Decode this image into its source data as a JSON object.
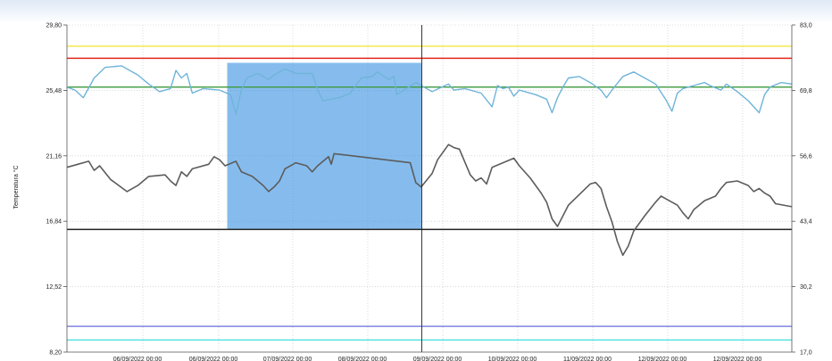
{
  "chart_data": {
    "type": "line",
    "ylabel": "Temperatura °C",
    "y_left": {
      "min": 8.2,
      "max": 29.8,
      "ticks": [
        "29,80",
        "25,48",
        "21,16",
        "16,84",
        "12,52",
        "8,20"
      ]
    },
    "y_right": {
      "min": 17.0,
      "max": 83.0,
      "ticks": [
        "83,0",
        "69,8",
        "56,6",
        "43,4",
        "30,2",
        "17,0"
      ]
    },
    "x": {
      "min": "2022-09-05 12:00",
      "max": "2022-09-13 10:00",
      "ticks": [
        "06/09/2022 00:00",
        "06/09/2022 00:00",
        "07/09/2022 00:00",
        "08/09/2022 00:00",
        "09/09/2022 00:00",
        "10/09/2022 00:00",
        "11/09/2022 00:00",
        "12/09/2022 00:00",
        "12/09/2022 00:00"
      ]
    },
    "reference_lines": [
      {
        "value": 28.4,
        "color": "#f2e640"
      },
      {
        "value": 27.6,
        "color": "#e0251b"
      },
      {
        "value": 25.7,
        "color": "#3c9a3c"
      },
      {
        "value": 16.3,
        "color": "#222222"
      },
      {
        "value": 9.9,
        "color": "#7f86e0"
      },
      {
        "value": 9.0,
        "color": "#49e0e0"
      }
    ],
    "cursor_x": "2022-09-09 09:00",
    "selection": {
      "x_start": "2022-09-07 06:00",
      "x_end": "2022-09-09 09:00",
      "y_start": 16.3,
      "y_end": 27.3
    },
    "series": [
      {
        "color": "#6fb4d8",
        "points": [
          [
            0,
            25.7
          ],
          [
            1.5,
            25.5
          ],
          [
            3,
            25.0
          ],
          [
            5,
            26.3
          ],
          [
            7,
            27.0
          ],
          [
            10,
            27.1
          ],
          [
            13,
            26.5
          ],
          [
            15,
            25.9
          ],
          [
            17,
            25.4
          ],
          [
            19,
            25.6
          ],
          [
            20,
            26.8
          ],
          [
            21,
            26.3
          ],
          [
            22,
            26.6
          ],
          [
            23,
            25.3
          ],
          [
            25,
            25.6
          ],
          [
            28,
            25.5
          ],
          [
            30,
            25.2
          ],
          [
            31,
            23.9
          ],
          [
            32,
            25.5
          ],
          [
            33,
            26.3
          ],
          [
            35,
            26.6
          ],
          [
            37,
            26.2
          ],
          [
            38,
            26.5
          ],
          [
            40,
            26.9
          ],
          [
            42,
            26.6
          ],
          [
            45,
            26.6
          ],
          [
            46,
            25.5
          ],
          [
            47,
            24.8
          ],
          [
            50,
            25.0
          ],
          [
            52,
            25.3
          ],
          [
            54,
            26.3
          ],
          [
            56,
            26.4
          ],
          [
            57,
            26.7
          ],
          [
            59,
            26.2
          ],
          [
            60,
            26.4
          ],
          [
            60.5,
            25.2
          ],
          [
            64,
            26.0
          ],
          [
            67,
            25.4
          ],
          [
            70,
            25.9
          ],
          [
            71,
            25.5
          ],
          [
            73,
            25.6
          ],
          [
            74,
            25.5
          ],
          [
            76,
            25.3
          ],
          [
            78,
            24.4
          ],
          [
            79,
            25.8
          ],
          [
            80,
            25.6
          ],
          [
            81,
            25.7
          ],
          [
            82,
            25.1
          ],
          [
            83,
            25.5
          ],
          [
            86,
            25.2
          ],
          [
            88,
            24.9
          ],
          [
            89,
            24.0
          ],
          [
            90,
            25.0
          ],
          [
            91,
            25.7
          ],
          [
            92,
            26.3
          ],
          [
            94,
            26.4
          ],
          [
            96,
            26.0
          ],
          [
            98,
            25.5
          ],
          [
            99,
            25.0
          ],
          [
            100,
            25.5
          ],
          [
            102,
            26.4
          ],
          [
            104,
            26.7
          ],
          [
            106,
            26.3
          ],
          [
            108,
            25.9
          ],
          [
            110,
            24.8
          ],
          [
            111,
            24.1
          ],
          [
            112,
            25.3
          ],
          [
            113,
            25.6
          ],
          [
            115,
            25.8
          ],
          [
            117,
            26.0
          ],
          [
            118,
            25.8
          ],
          [
            120,
            25.5
          ],
          [
            121,
            25.9
          ],
          [
            123,
            25.4
          ],
          [
            125,
            24.8
          ],
          [
            127,
            24.0
          ],
          [
            128,
            25.2
          ],
          [
            129,
            25.7
          ],
          [
            131,
            26.0
          ],
          [
            133,
            25.9
          ]
        ]
      },
      {
        "color": "#5c5c5c",
        "points": [
          [
            0,
            20.4
          ],
          [
            2,
            20.6
          ],
          [
            4,
            20.8
          ],
          [
            5,
            20.2
          ],
          [
            6,
            20.5
          ],
          [
            8,
            19.6
          ],
          [
            11,
            18.8
          ],
          [
            13,
            19.2
          ],
          [
            15,
            19.8
          ],
          [
            18,
            19.9
          ],
          [
            19,
            19.5
          ],
          [
            20,
            19.2
          ],
          [
            21,
            20.1
          ],
          [
            22,
            19.8
          ],
          [
            23,
            20.3
          ],
          [
            26,
            20.6
          ],
          [
            27,
            21.1
          ],
          [
            28,
            20.9
          ],
          [
            29,
            20.5
          ],
          [
            31,
            20.8
          ],
          [
            32,
            20.1
          ],
          [
            34,
            19.8
          ],
          [
            36,
            19.2
          ],
          [
            37,
            18.8
          ],
          [
            38,
            19.1
          ],
          [
            39,
            19.5
          ],
          [
            40,
            20.3
          ],
          [
            42,
            20.7
          ],
          [
            44,
            20.5
          ],
          [
            45,
            20.1
          ],
          [
            46,
            20.5
          ],
          [
            47,
            20.8
          ],
          [
            48,
            21.1
          ],
          [
            48.5,
            20.6
          ],
          [
            49,
            21.3
          ],
          [
            63,
            20.7
          ],
          [
            64,
            19.4
          ],
          [
            65,
            19.1
          ],
          [
            67,
            20.0
          ],
          [
            68,
            20.9
          ],
          [
            70,
            21.9
          ],
          [
            71,
            21.7
          ],
          [
            72,
            21.6
          ],
          [
            74,
            19.9
          ],
          [
            75,
            19.5
          ],
          [
            76,
            19.7
          ],
          [
            77,
            19.3
          ],
          [
            78,
            20.4
          ],
          [
            80,
            20.7
          ],
          [
            82,
            21.0
          ],
          [
            83,
            20.5
          ],
          [
            85,
            19.7
          ],
          [
            87,
            18.7
          ],
          [
            88,
            18.1
          ],
          [
            89,
            17.0
          ],
          [
            90,
            16.5
          ],
          [
            91,
            17.2
          ],
          [
            92,
            17.9
          ],
          [
            94,
            18.6
          ],
          [
            96,
            19.3
          ],
          [
            97,
            19.4
          ],
          [
            98,
            19.0
          ],
          [
            99,
            17.8
          ],
          [
            100,
            16.8
          ],
          [
            101,
            15.5
          ],
          [
            102,
            14.6
          ],
          [
            103,
            15.2
          ],
          [
            104,
            16.2
          ],
          [
            106,
            17.2
          ],
          [
            108,
            18.1
          ],
          [
            109,
            18.5
          ],
          [
            110,
            18.3
          ],
          [
            112,
            17.9
          ],
          [
            113,
            17.4
          ],
          [
            114,
            17.0
          ],
          [
            115,
            17.6
          ],
          [
            117,
            18.2
          ],
          [
            119,
            18.5
          ],
          [
            120,
            19.0
          ],
          [
            121,
            19.4
          ],
          [
            123,
            19.5
          ],
          [
            125,
            19.2
          ],
          [
            126,
            18.8
          ],
          [
            127,
            19.0
          ],
          [
            128,
            18.7
          ],
          [
            129,
            18.5
          ],
          [
            130,
            18.0
          ],
          [
            133,
            17.8
          ]
        ]
      }
    ]
  }
}
